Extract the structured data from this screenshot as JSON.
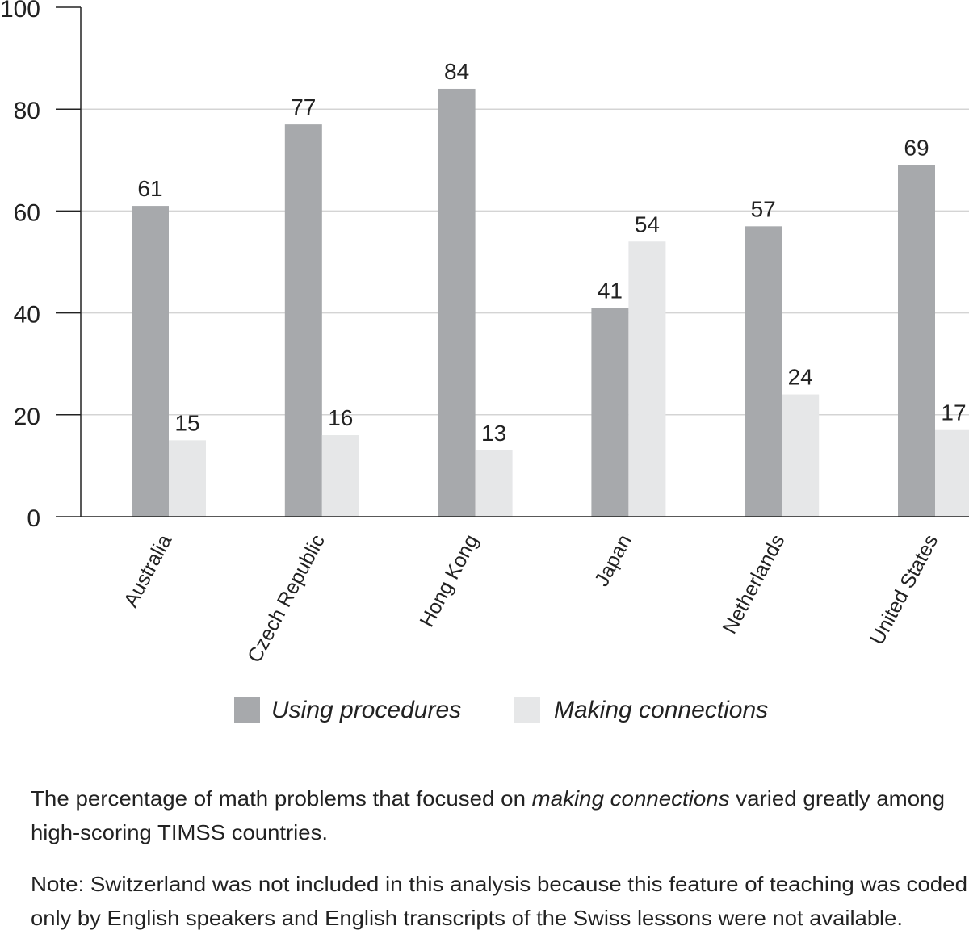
{
  "chart_data": {
    "type": "bar",
    "categories": [
      "Australia",
      "Czech Republic",
      "Hong Kong",
      "Japan",
      "Netherlands",
      "United States"
    ],
    "series": [
      {
        "name": "Using procedures",
        "values": [
          61,
          77,
          84,
          41,
          57,
          69
        ],
        "color": "#a7a9ac"
      },
      {
        "name": "Making connections",
        "values": [
          15,
          16,
          13,
          54,
          24,
          17
        ],
        "color": "#e6e7e8"
      }
    ],
    "ylim": [
      0,
      100
    ],
    "yticks": [
      0,
      20,
      40,
      60,
      80,
      100
    ],
    "grid": true,
    "legend_placement": "bottom"
  },
  "caption": {
    "line1_before": "The percentage of math problems that focused on ",
    "line1_italic": "making connections",
    "line1_after": " varied greatly among",
    "line2": "high-scoring TIMSS countries.",
    "note_line1": "Note: Switzerland was not included in this analysis because this feature of teaching was coded",
    "note_line2": "only by English speakers and English transcripts of the Swiss lessons were not available."
  }
}
